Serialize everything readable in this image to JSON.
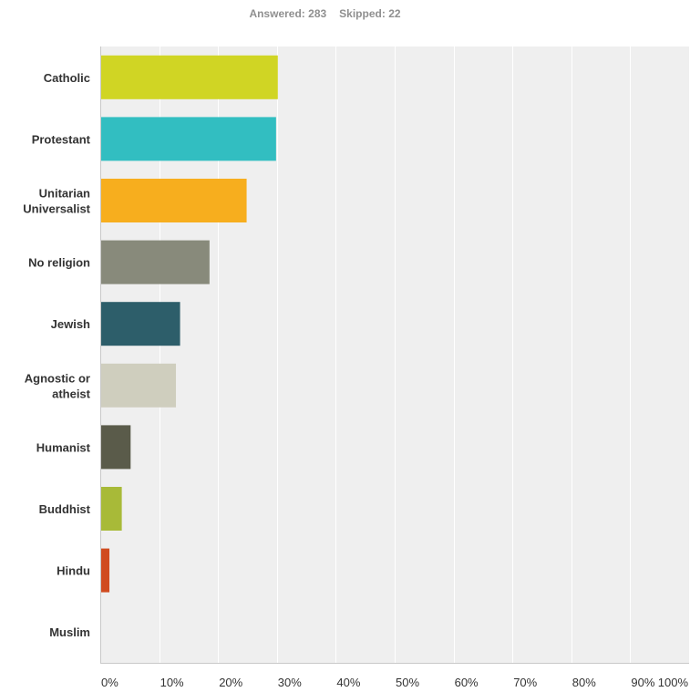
{
  "summary": {
    "answered_label": "Answered:",
    "answered_value": "283",
    "skipped_label": "Skipped:",
    "skipped_value": "22"
  },
  "chart_data": {
    "type": "bar",
    "orientation": "horizontal",
    "categories": [
      [
        "Catholic"
      ],
      [
        "Protestant"
      ],
      [
        "Unitarian",
        "Universalist"
      ],
      [
        "No religion"
      ],
      [
        "Jewish"
      ],
      [
        "Agnostic or",
        "atheist"
      ],
      [
        "Humanist"
      ],
      [
        "Buddhist"
      ],
      [
        "Hindu"
      ],
      [
        "Muslim"
      ]
    ],
    "values": [
      30.0,
      29.7,
      24.7,
      18.4,
      13.4,
      12.7,
      5.0,
      3.5,
      1.4,
      0.0
    ],
    "colors": [
      "#d0d524",
      "#32bec1",
      "#f7ae1e",
      "#888a7b",
      "#2d5e6a",
      "#cfcebe",
      "#5a5b4a",
      "#a8ba38",
      "#d04b1f",
      "#c7c7c7"
    ],
    "xlim": [
      0,
      100
    ],
    "x_ticks": [
      0,
      10,
      20,
      30,
      40,
      50,
      60,
      70,
      80,
      90,
      100
    ],
    "x_tick_labels": [
      "0%",
      "10%",
      "20%",
      "30%",
      "40%",
      "50%",
      "60%",
      "70%",
      "80%",
      "90%",
      "100%"
    ],
    "grid": true,
    "plot_background": "#efefef",
    "grid_color": "#ffffff"
  }
}
